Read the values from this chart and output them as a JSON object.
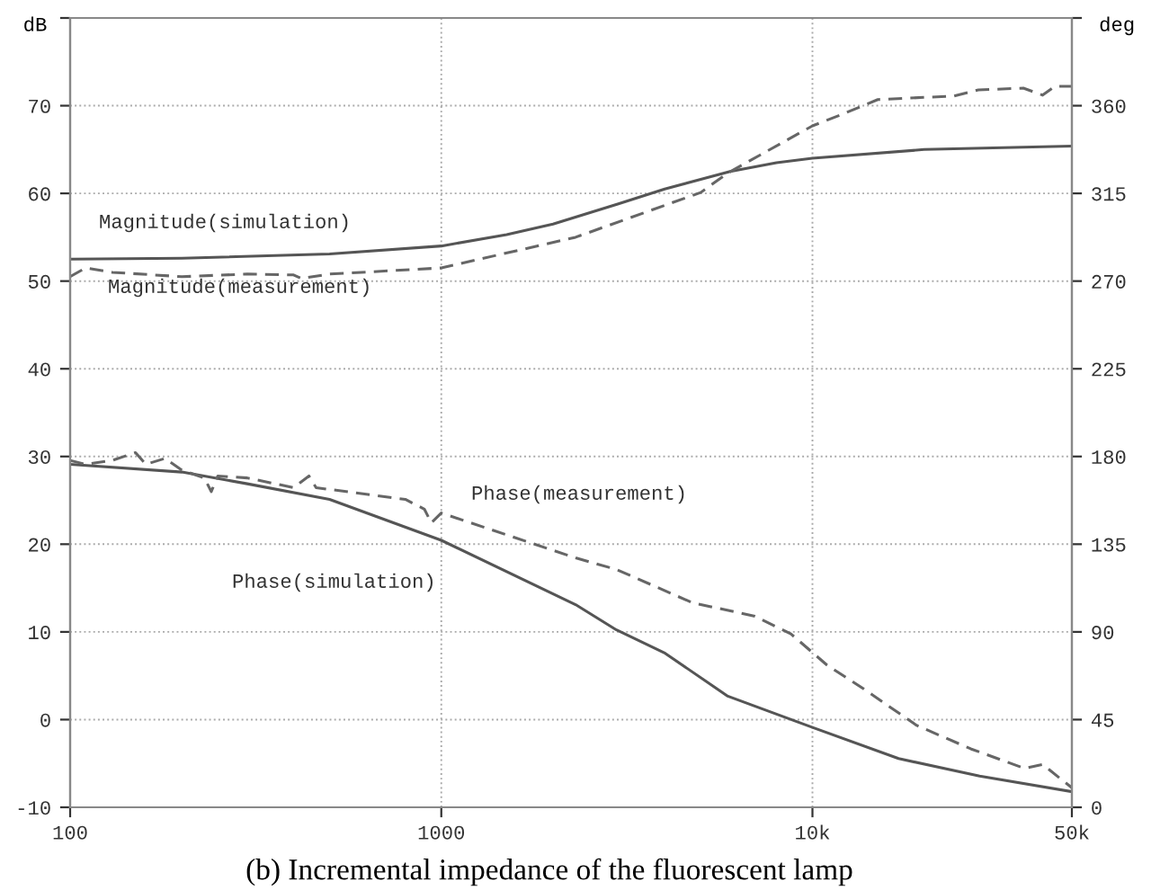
{
  "chart_data": {
    "type": "line",
    "ylabel": "dB",
    "y2label": "deg",
    "x": [
      100,
      200,
      500,
      1000,
      1500,
      2000,
      3000,
      4000,
      5000,
      6000,
      8000,
      10000,
      20000,
      50000
    ],
    "series": [
      {
        "name": "Magnitude(simulation)",
        "color": "#555555",
        "line_style": "solid",
        "values": [
          52.5,
          52.6,
          53.1,
          54,
          55.3,
          56.5,
          58.8,
          60.5,
          61.6,
          62.5,
          63.5,
          64.0,
          65.0,
          65.4
        ]
      },
      {
        "name": "Magnitude(measurement)",
        "color": "#666666",
        "line_style": "dashed",
        "x": [
          100,
          110,
          130,
          200,
          300,
          400,
          420,
          500,
          1000,
          2300,
          5000,
          5900,
          10000,
          12000,
          15000,
          24000,
          28000,
          37000,
          41700,
          45000,
          50000
        ],
        "values": [
          50.5,
          51.5,
          51,
          50.5,
          50.8,
          50.7,
          50.3,
          50.8,
          51.5,
          55,
          60.1,
          62.3,
          67.7,
          69,
          70.7,
          71.1,
          71.8,
          72,
          71.2,
          72.2,
          72.2
        ]
      },
      {
        "name": "Phase(simulation)",
        "color": "#555555",
        "line_style": "solid",
        "axis": "y2",
        "x": [
          100,
          200,
          300,
          500,
          1000,
          2300,
          2965,
          4010,
          5915,
          10000,
          17060,
          28200,
          50000
        ],
        "values": [
          176,
          172,
          166,
          158,
          137,
          104,
          91,
          79,
          57,
          41,
          25,
          16,
          8
        ]
      },
      {
        "name": "Phase(measurement)",
        "color": "#666666",
        "line_style": "dashed",
        "axis": "y2",
        "x": [
          100,
          110,
          130,
          150,
          160,
          180,
          200,
          230,
          240,
          250,
          300,
          400,
          440,
          460,
          800,
          900,
          940,
          1000,
          2300,
          2965,
          4745,
          7000,
          8750,
          10940,
          13680,
          19100,
          26700,
          37200,
          41700,
          50000
        ],
        "values": [
          178,
          176,
          178,
          182,
          176,
          179,
          173,
          169,
          162,
          170,
          169,
          164,
          170,
          164,
          158,
          153,
          146,
          151,
          128,
          122,
          105,
          98,
          89,
          73,
          61,
          42,
          30,
          20,
          22,
          10
        ]
      }
    ],
    "log": "x",
    "xlim": [
      100,
      50000
    ],
    "xticks": [
      100,
      1000,
      {
        "value": 10000,
        "label": "10k"
      },
      {
        "value": 50000,
        "label": "50k"
      }
    ],
    "ylim": [
      -10,
      80
    ],
    "yticks": [
      -10,
      0,
      10,
      20,
      30,
      40,
      50,
      60,
      70,
      {
        "value": 80,
        "label": null
      }
    ],
    "y2lim": [
      0,
      405
    ],
    "y2ticks": [
      0,
      45,
      90,
      135,
      180,
      225,
      270,
      315,
      360,
      {
        "value": 405,
        "label": null
      }
    ],
    "grid": true,
    "annotations": [
      "(b) Incremental impedance of the fluorescent lamp"
    ]
  }
}
